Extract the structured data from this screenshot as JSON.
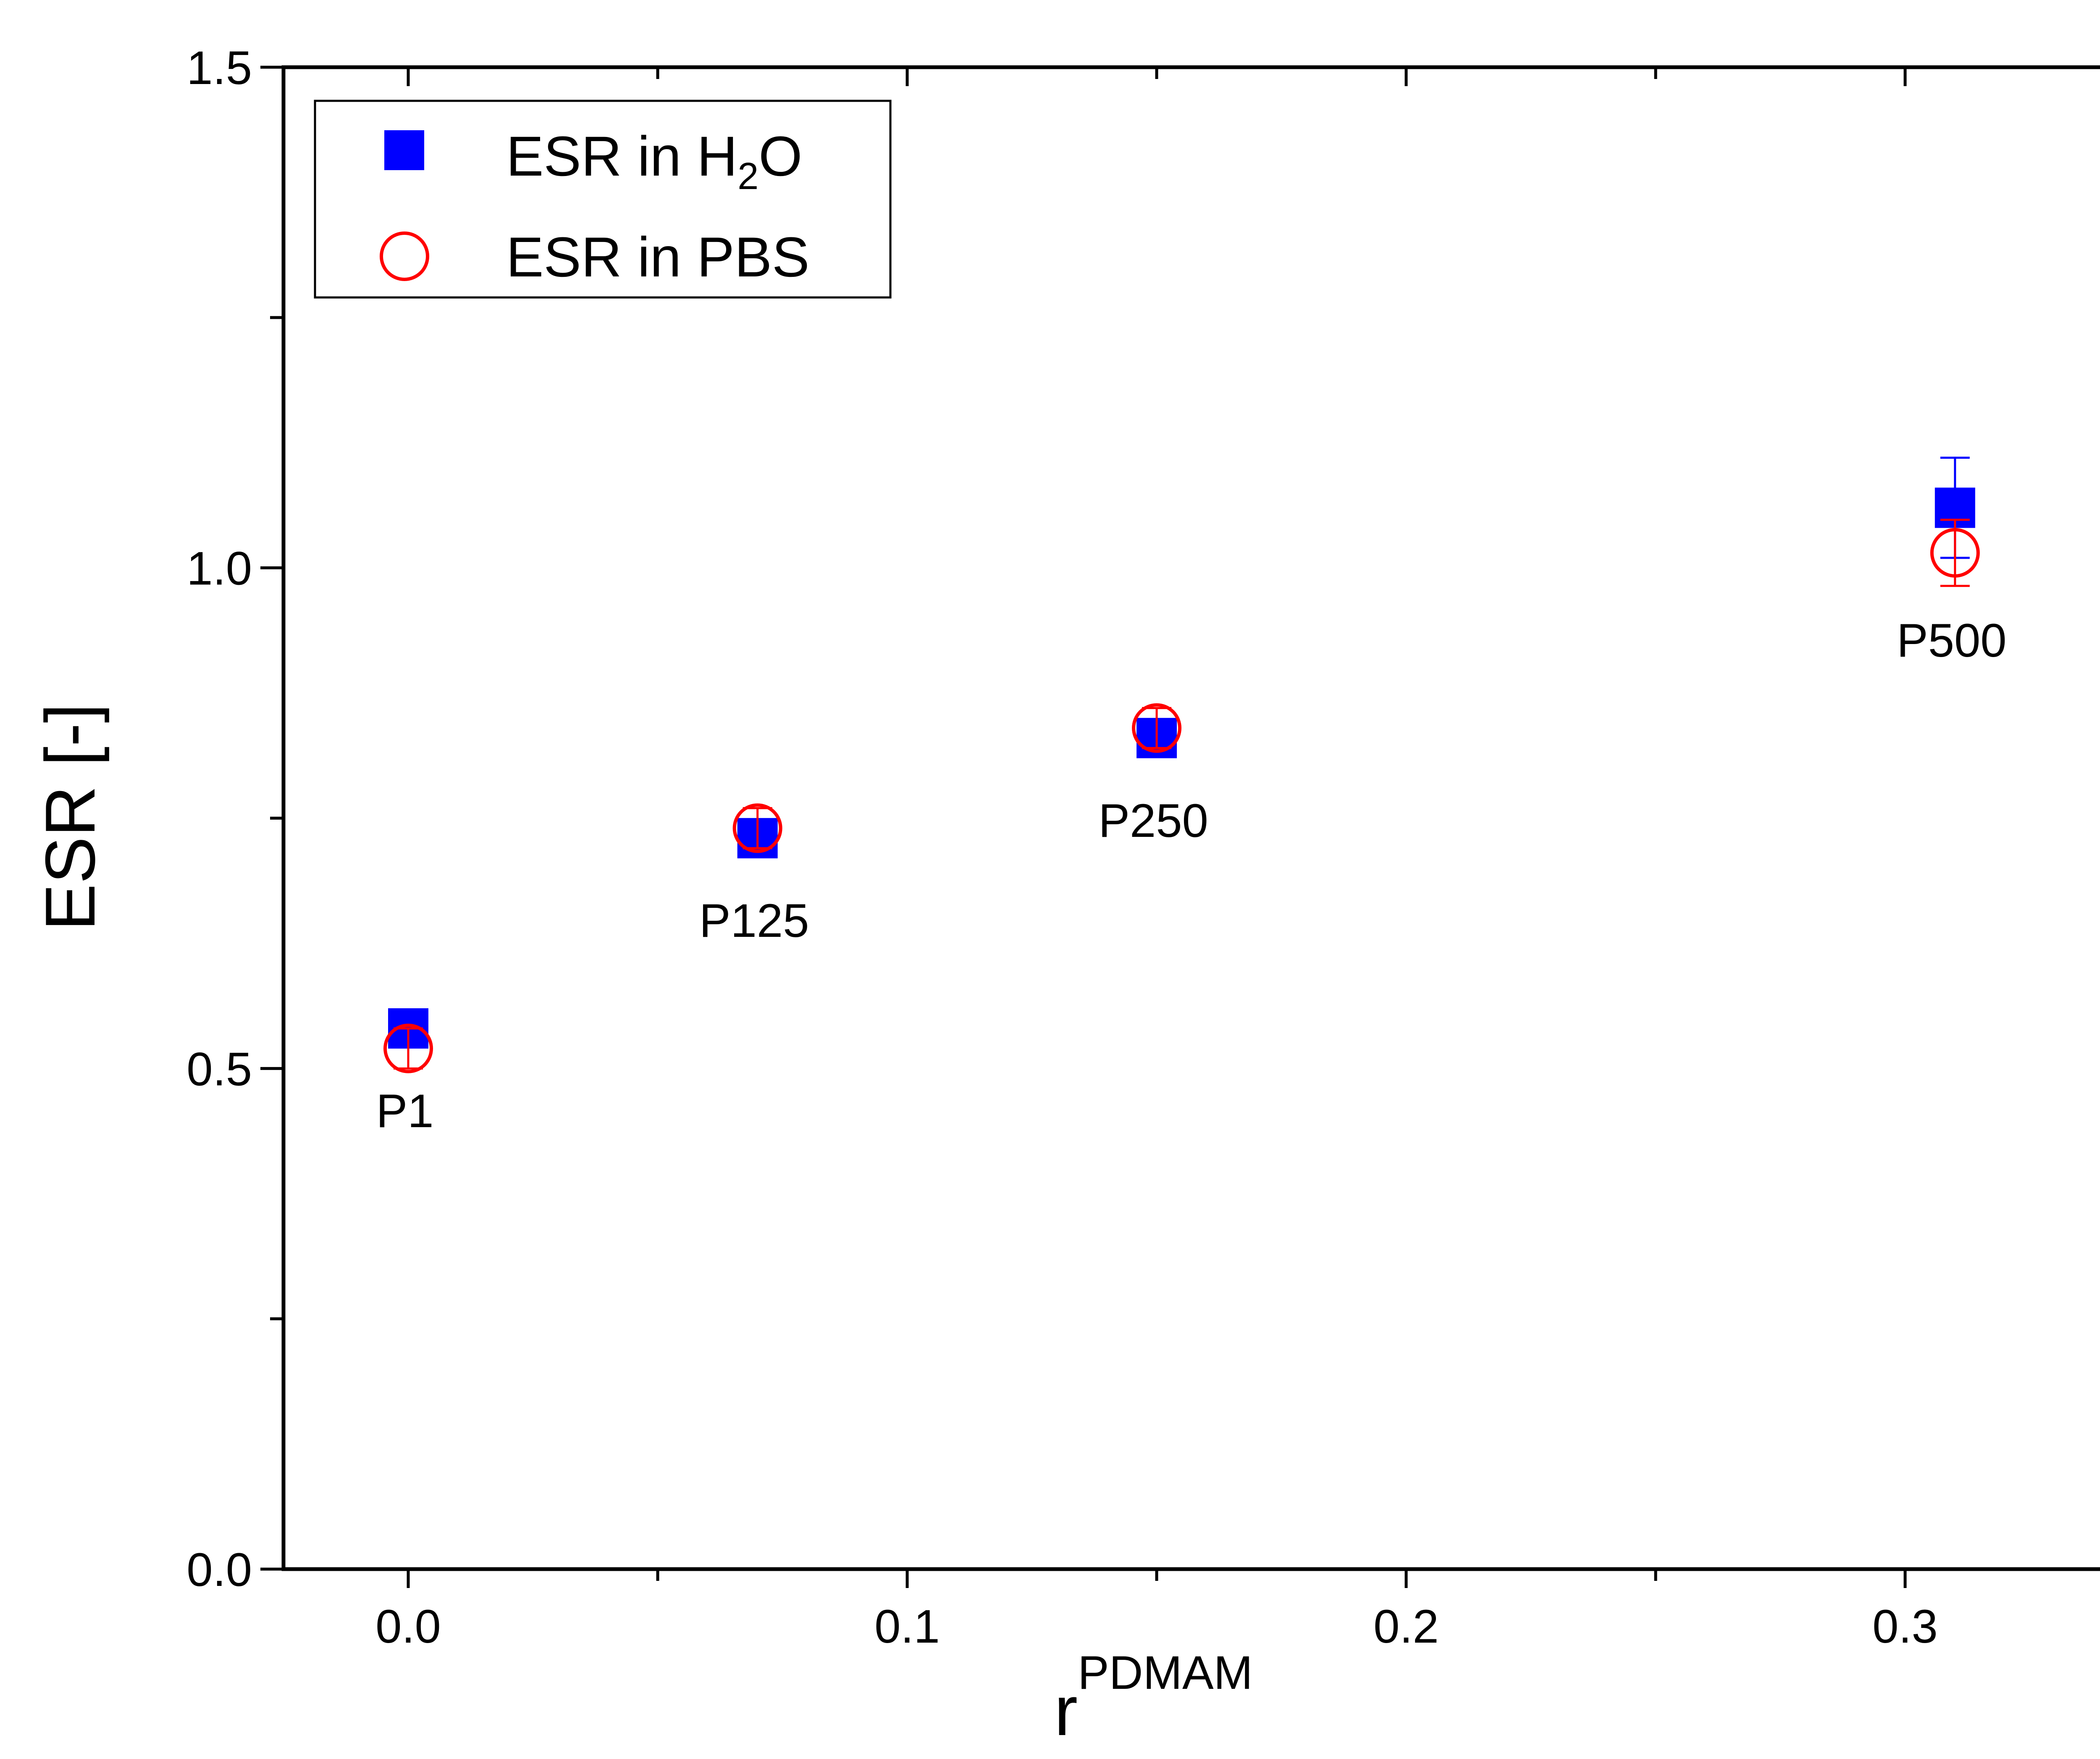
{
  "chart_data": {
    "type": "scatter",
    "title": "",
    "xlabel": "r",
    "xlabel_superscript": "PDMAM",
    "ylabel": "ESR [-]",
    "xlim": [
      -0.025,
      0.35
    ],
    "ylim": [
      0.0,
      1.5
    ],
    "x_ticks": [
      0.0,
      0.1,
      0.2,
      0.3
    ],
    "x_tick_labels": [
      "0.0",
      "0.1",
      "0.2",
      "0.3"
    ],
    "x_minor_ticks": [
      0.05,
      0.15,
      0.25
    ],
    "y_ticks": [
      0.0,
      0.5,
      1.0,
      1.5
    ],
    "y_tick_labels": [
      "0.0",
      "0.5",
      "1.0",
      "1.5"
    ],
    "y_minor_ticks": [
      0.25,
      0.75,
      1.25
    ],
    "grid": false,
    "legend_position": "top-left",
    "colors": {
      "h2o": "#0000ff",
      "pbs": "#ff0000",
      "axis": "#000000"
    },
    "series": [
      {
        "name": "ESR in H2O",
        "legend_main": "ESR in H",
        "legend_sub": "2",
        "legend_tail": "O",
        "marker": "filled-square",
        "color": "#0000ff",
        "x": [
          0.0,
          0.07,
          0.15,
          0.31
        ],
        "y": [
          0.54,
          0.73,
          0.83,
          1.06
        ],
        "err": [
          0.01,
          0.01,
          0.01,
          0.05
        ]
      },
      {
        "name": "ESR in PBS",
        "legend_main": "ESR in PBS",
        "marker": "open-circle",
        "color": "#ff0000",
        "x": [
          0.0,
          0.07,
          0.15,
          0.31
        ],
        "y": [
          0.52,
          0.74,
          0.84,
          1.015
        ],
        "err": [
          0.02,
          0.02,
          0.02,
          0.033
        ]
      }
    ],
    "point_labels": [
      {
        "text": "P1",
        "x": 0.0,
        "anchor_y": 0.54
      },
      {
        "text": "P125",
        "x": 0.07,
        "anchor_y": 0.73
      },
      {
        "text": "P250",
        "x": 0.15,
        "anchor_y": 0.83
      },
      {
        "text": "P500",
        "x": 0.31,
        "anchor_y": 1.01
      }
    ]
  }
}
